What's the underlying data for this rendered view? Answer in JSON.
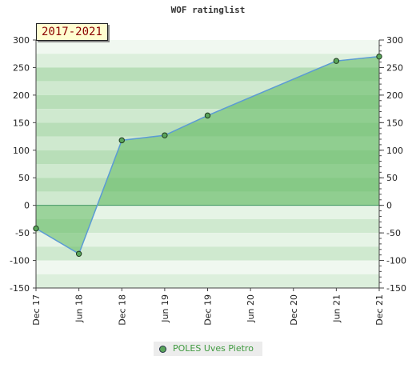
{
  "chart_data": {
    "type": "area",
    "title": "WOF ratinglist",
    "badge": "2017-2021",
    "x_ticks": [
      "Dec 17",
      "Jun 18",
      "Dec 18",
      "Jun 19",
      "Dec 19",
      "Jun 20",
      "Dec 20",
      "Jun 21",
      "Dec 21"
    ],
    "y_ticks": [
      300,
      250,
      200,
      150,
      100,
      50,
      0,
      -50,
      -100,
      -150
    ],
    "ylim": [
      -150,
      300
    ],
    "series": [
      {
        "name": "POLES Uves Pietro",
        "x": [
          "Dec 17",
          "Jun 18",
          "Dec 18",
          "Jun 19",
          "Dec 19",
          "Jun 21",
          "Dec 21"
        ],
        "x_index": [
          0,
          1,
          2,
          3,
          4,
          7,
          8
        ],
        "values": [
          -42,
          -88,
          118,
          127,
          163,
          262,
          270
        ]
      }
    ],
    "colors": {
      "fill": "#5cb85c",
      "line": "#5b9bd5",
      "marker": "#5aa55a"
    },
    "legend_position": "bottom"
  }
}
